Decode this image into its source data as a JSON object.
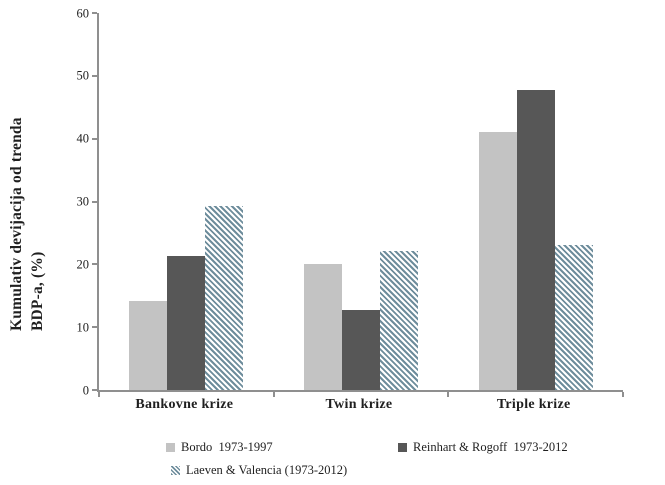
{
  "chart_data": {
    "type": "bar",
    "title": "",
    "categories": [
      "Bankovne krize",
      "Twin krize",
      "Triple krize"
    ],
    "series": [
      {
        "name": "Bordo  1973-1997",
        "style": "solid",
        "color": "#c3c3c3",
        "values": [
          14.2,
          20.1,
          41.1
        ]
      },
      {
        "name": "Reinhart & Rogoff  1973-2012",
        "style": "solid",
        "color": "#575757",
        "values": [
          21.4,
          12.8,
          47.8
        ]
      },
      {
        "name": "Laeven & Valencia (1973-2012)",
        "style": "hatch-diagonal",
        "color": "#6e8d9c",
        "values": [
          29.3,
          22.2,
          23.0
        ]
      }
    ],
    "xlabel": "",
    "ylabel": "Kumulativ devijacija od trenda BDP-a, (%)",
    "ylabel_lines": [
      "Kumulativ devijacija od trenda",
      "BDP-a, (%)"
    ],
    "ylim": [
      0,
      60
    ],
    "yticks": [
      0,
      10,
      20,
      30,
      40,
      50,
      60
    ],
    "grid": false,
    "legend_position": "bottom"
  },
  "colors": {
    "background": "#ffffff",
    "axis": "#8f8f8f",
    "text": "#1f1f1f",
    "bar_light": "#c3c3c3",
    "bar_dark": "#575757",
    "hatch_stripe": "#6e8d9c"
  }
}
